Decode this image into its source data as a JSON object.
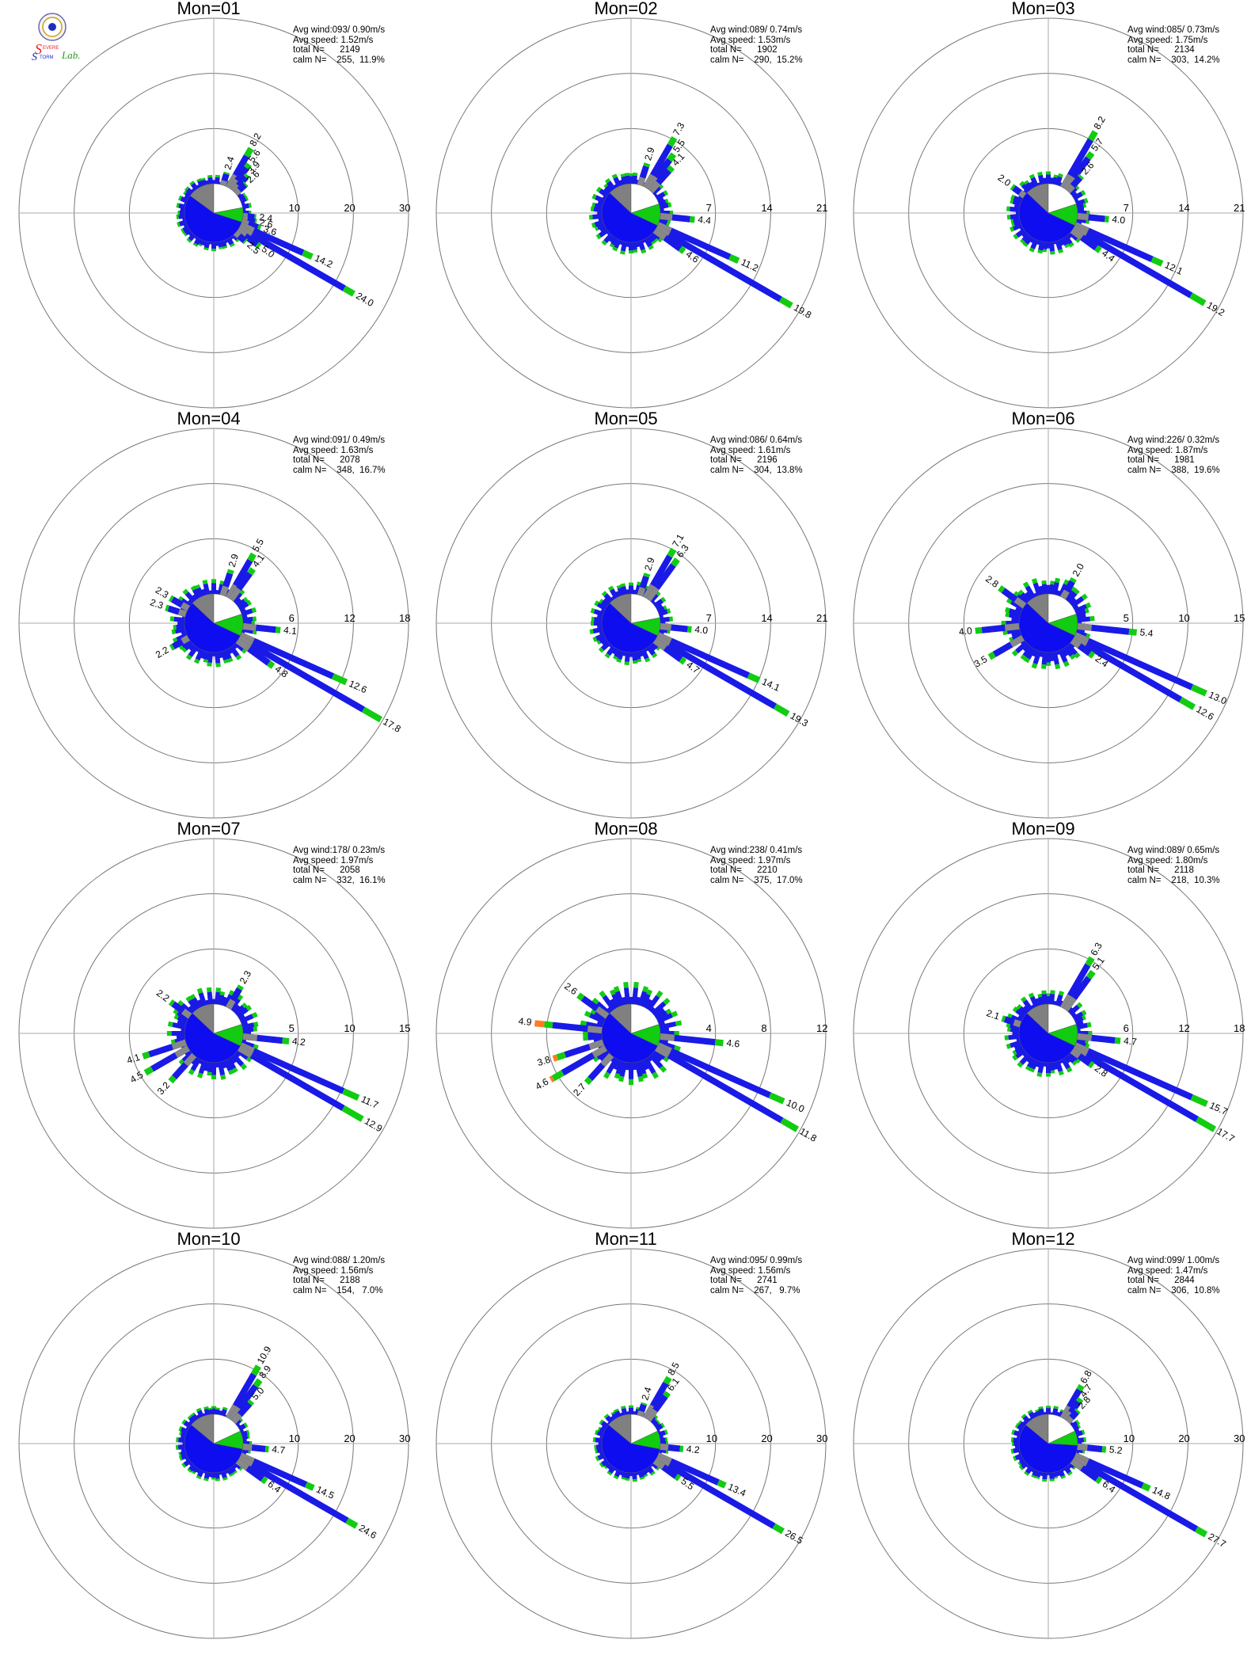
{
  "logo": {
    "lab_text_s1": "S",
    "lab_text_evere": "EVERE",
    "lab_text_s2": "S",
    "lab_text_torm": "TORM",
    "lab_text_lab": "Lab.",
    "colors": {
      "red": "#e8202a",
      "blue": "#1c2fbf",
      "green": "#2a9a1a"
    }
  },
  "colors": {
    "ring": "#777777",
    "axis": "#aaaaaa",
    "speed_0": "#1a1ae6",
    "speed_1": "#11cc11",
    "speed_2": "#ff7b24",
    "calm_blue": "#0d0df0",
    "calm_green": "#11cc11",
    "calm_gray": "#808080",
    "calm_white": "#ffffff"
  },
  "chart_data": [
    {
      "type": "wind-rose",
      "title": "Mon=01",
      "stats": [
        "Avg wind:093/ 0.90m/s",
        "Avg speed: 1.52m/s",
        "total N=      2149",
        "calm N=    255,  11.9%"
      ],
      "rings": [
        10,
        20,
        30
      ],
      "ring_labels": [
        "10",
        "20",
        "30"
      ],
      "bars": [
        {
          "dir": 30,
          "values": [
            6.6,
            1.6
          ],
          "label": "8.2"
        },
        {
          "dir": 36,
          "values": [
            4.8,
            0.8
          ],
          "label": "5.6"
        },
        {
          "dir": 42,
          "values": [
            3.4,
            0.5
          ],
          "label": "3.9"
        },
        {
          "dir": 48,
          "values": [
            2.3,
            0.3
          ],
          "label": "2.6"
        },
        {
          "dir": 96,
          "values": [
            2.1,
            0.3
          ],
          "label": "2.4"
        },
        {
          "dir": 102,
          "values": [
            2.3,
            0.3
          ],
          "label": "2.6"
        },
        {
          "dir": 108,
          "values": [
            3.1,
            0.5
          ],
          "label": "3.6"
        },
        {
          "dir": 114,
          "values": [
            12.4,
            1.8
          ],
          "label": "14.2"
        },
        {
          "dir": 120,
          "values": [
            22.0,
            2.0
          ],
          "label": "24.0"
        },
        {
          "dir": 126,
          "values": [
            4.4,
            0.6
          ],
          "label": "5.0"
        },
        {
          "dir": 132,
          "values": [
            2.2,
            0.3
          ],
          "label": "2.5"
        },
        {
          "dir": 18,
          "values": [
            2.1,
            0.3
          ],
          "label": "2.4"
        }
      ],
      "calm_fractions": {
        "blue": 0.55,
        "gray": 0.15,
        "white": 0.22,
        "green": 0.08
      }
    },
    {
      "type": "wind-rose",
      "title": "Mon=02",
      "stats": [
        "Avg wind:089/ 0.74m/s",
        "Avg speed: 1.53m/s",
        "total N=      1902",
        "calm N=    290,  15.2%"
      ],
      "rings": [
        7,
        14,
        21
      ],
      "ring_labels": [
        "7",
        "14",
        "21"
      ],
      "bars": [
        {
          "dir": 30,
          "values": [
            6.2,
            1.1
          ],
          "label": "7.3"
        },
        {
          "dir": 36,
          "values": [
            4.6,
            0.9
          ],
          "label": "5.5"
        },
        {
          "dir": 42,
          "values": [
            3.5,
            0.6
          ],
          "label": "4.1"
        },
        {
          "dir": 18,
          "values": [
            2.5,
            0.4
          ],
          "label": "2.9"
        },
        {
          "dir": 96,
          "values": [
            3.8,
            0.6
          ],
          "label": "4.4"
        },
        {
          "dir": 114,
          "values": [
            10.0,
            1.2
          ],
          "label": "11.2"
        },
        {
          "dir": 120,
          "values": [
            18.2,
            1.6
          ],
          "label": "19.8"
        },
        {
          "dir": 126,
          "values": [
            4.0,
            0.6
          ],
          "label": "4.6"
        }
      ],
      "calm_fractions": {
        "blue": 0.55,
        "gray": 0.13,
        "white": 0.2,
        "green": 0.12
      }
    },
    {
      "type": "wind-rose",
      "title": "Mon=03",
      "stats": [
        "Avg wind:085/ 0.73m/s",
        "Avg speed: 1.75m/s",
        "total N=      2134",
        "calm N=    303,  14.2%"
      ],
      "rings": [
        7,
        14,
        21
      ],
      "ring_labels": [
        "7",
        "14",
        "21"
      ],
      "bars": [
        {
          "dir": 30,
          "values": [
            7.0,
            1.2
          ],
          "label": "8.2"
        },
        {
          "dir": 36,
          "values": [
            4.9,
            0.8
          ],
          "label": "5.7"
        },
        {
          "dir": 42,
          "values": [
            2.3,
            0.3
          ],
          "label": "2.6"
        },
        {
          "dir": 306,
          "values": [
            1.7,
            0.3
          ],
          "label": "2.0"
        },
        {
          "dir": 96,
          "values": [
            3.5,
            0.5
          ],
          "label": "4.0"
        },
        {
          "dir": 114,
          "values": [
            10.7,
            1.4
          ],
          "label": "12.1"
        },
        {
          "dir": 120,
          "values": [
            17.2,
            2.0
          ],
          "label": "19.2"
        },
        {
          "dir": 126,
          "values": [
            3.8,
            0.6
          ],
          "label": "4.4"
        }
      ],
      "calm_fractions": {
        "blue": 0.55,
        "gray": 0.13,
        "white": 0.2,
        "green": 0.12
      }
    },
    {
      "type": "wind-rose",
      "title": "Mon=04",
      "stats": [
        "Avg wind:091/ 0.49m/s",
        "Avg speed: 1.63m/s",
        "total N=      2078",
        "calm N=    348,  16.7%"
      ],
      "rings": [
        6,
        12,
        18
      ],
      "ring_labels": [
        "6",
        "12",
        "18"
      ],
      "bars": [
        {
          "dir": 30,
          "values": [
            4.7,
            0.8
          ],
          "label": "5.5"
        },
        {
          "dir": 36,
          "values": [
            3.5,
            0.6
          ],
          "label": "4.1"
        },
        {
          "dir": 18,
          "values": [
            2.5,
            0.4
          ],
          "label": "2.9"
        },
        {
          "dir": 300,
          "values": [
            2.0,
            0.3
          ],
          "label": "2.3"
        },
        {
          "dir": 288,
          "values": [
            2.0,
            0.3
          ],
          "label": "2.3"
        },
        {
          "dir": 96,
          "values": [
            3.6,
            0.5
          ],
          "label": "4.1"
        },
        {
          "dir": 114,
          "values": [
            11.0,
            1.6
          ],
          "label": "12.6"
        },
        {
          "dir": 120,
          "values": [
            15.6,
            2.2
          ],
          "label": "17.8"
        },
        {
          "dir": 126,
          "values": [
            4.2,
            0.6
          ],
          "label": "4.8"
        },
        {
          "dir": 240,
          "values": [
            1.9,
            0.3
          ],
          "label": "2.2"
        }
      ],
      "calm_fractions": {
        "blue": 0.55,
        "gray": 0.13,
        "white": 0.2,
        "green": 0.12
      }
    },
    {
      "type": "wind-rose",
      "title": "Mon=05",
      "stats": [
        "Avg wind:086/ 0.64m/s",
        "Avg speed: 1.61m/s",
        "total N=      2196",
        "calm N=    304,  13.8%"
      ],
      "rings": [
        7,
        14,
        21
      ],
      "ring_labels": [
        "7",
        "14",
        "21"
      ],
      "bars": [
        {
          "dir": 30,
          "values": [
            6.1,
            1.0
          ],
          "label": "7.1"
        },
        {
          "dir": 36,
          "values": [
            5.4,
            0.9
          ],
          "label": "6.3"
        },
        {
          "dir": 18,
          "values": [
            2.5,
            0.4
          ],
          "label": "2.9"
        },
        {
          "dir": 96,
          "values": [
            3.5,
            0.5
          ],
          "label": "4.0"
        },
        {
          "dir": 114,
          "values": [
            12.6,
            1.5
          ],
          "label": "14.1"
        },
        {
          "dir": 120,
          "values": [
            17.4,
            1.9
          ],
          "label": "19.3"
        },
        {
          "dir": 126,
          "values": [
            4.1,
            0.6
          ],
          "label": "4.7"
        }
      ],
      "calm_fractions": {
        "blue": 0.55,
        "gray": 0.13,
        "white": 0.22,
        "green": 0.1
      }
    },
    {
      "type": "wind-rose",
      "title": "Mon=06",
      "stats": [
        "Avg wind:226/ 0.32m/s",
        "Avg speed: 1.87m/s",
        "total N=      1981",
        "calm N=    388,  19.6%"
      ],
      "rings": [
        5,
        10,
        15
      ],
      "ring_labels": [
        "5",
        "10",
        "15"
      ],
      "bars": [
        {
          "dir": 30,
          "values": [
            1.7,
            0.3
          ],
          "label": "2.0"
        },
        {
          "dir": 96,
          "values": [
            4.7,
            0.7
          ],
          "label": "5.4"
        },
        {
          "dir": 114,
          "values": [
            11.6,
            1.4
          ],
          "label": "13.0"
        },
        {
          "dir": 120,
          "values": [
            11.2,
            1.4
          ],
          "label": "12.6"
        },
        {
          "dir": 126,
          "values": [
            2.0,
            0.4
          ],
          "label": "2.4"
        },
        {
          "dir": 306,
          "values": [
            2.4,
            0.4
          ],
          "label": "2.8"
        },
        {
          "dir": 264,
          "values": [
            3.4,
            0.6
          ],
          "label": "4.0"
        },
        {
          "dir": 240,
          "values": [
            3.0,
            0.5
          ],
          "label": "3.5"
        }
      ],
      "calm_fractions": {
        "blue": 0.55,
        "gray": 0.13,
        "white": 0.2,
        "green": 0.12
      }
    },
    {
      "type": "wind-rose",
      "title": "Mon=07",
      "stats": [
        "Avg wind:178/ 0.23m/s",
        "Avg speed: 1.97m/s",
        "total N=      2058",
        "calm N=    332,  16.1%"
      ],
      "rings": [
        5,
        10,
        15
      ],
      "ring_labels": [
        "5",
        "10",
        "15"
      ],
      "bars": [
        {
          "dir": 30,
          "values": [
            2.0,
            0.3
          ],
          "label": "2.3"
        },
        {
          "dir": 96,
          "values": [
            3.6,
            0.6
          ],
          "label": "4.2"
        },
        {
          "dir": 114,
          "values": [
            10.2,
            1.5
          ],
          "label": "11.7"
        },
        {
          "dir": 120,
          "values": [
            10.9,
            2.0
          ],
          "label": "12.9"
        },
        {
          "dir": 306,
          "values": [
            1.9,
            0.3
          ],
          "label": "2.2"
        },
        {
          "dir": 240,
          "values": [
            3.8,
            0.7
          ],
          "label": "4.5"
        },
        {
          "dir": 252,
          "values": [
            3.5,
            0.6
          ],
          "label": "4.1"
        },
        {
          "dir": 222,
          "values": [
            2.7,
            0.5
          ],
          "label": "3.2"
        }
      ],
      "calm_fractions": {
        "blue": 0.55,
        "gray": 0.13,
        "white": 0.2,
        "green": 0.12
      }
    },
    {
      "type": "wind-rose",
      "title": "Mon=08",
      "stats": [
        "Avg wind:238/ 0.41m/s",
        "Avg speed: 1.97m/s",
        "total N=      2210",
        "calm N=    375,  17.0%"
      ],
      "rings": [
        4,
        8,
        12
      ],
      "ring_labels": [
        "4",
        "8",
        "12"
      ],
      "bars": [
        {
          "dir": 96,
          "values": [
            4.0,
            0.6
          ],
          "label": "4.6"
        },
        {
          "dir": 114,
          "values": [
            8.9,
            1.1
          ],
          "label": "10.0"
        },
        {
          "dir": 120,
          "values": [
            10.5,
            1.3
          ],
          "label": "11.8"
        },
        {
          "dir": 276,
          "values": [
            3.6,
            0.6,
            0.7
          ],
          "label": "4.9"
        },
        {
          "dir": 306,
          "values": [
            2.2,
            0.4
          ],
          "label": "2.6"
        },
        {
          "dir": 240,
          "values": [
            3.6,
            0.8,
            0.2
          ],
          "label": "4.6"
        },
        {
          "dir": 252,
          "values": [
            2.9,
            0.6,
            0.3
          ],
          "label": "3.8"
        },
        {
          "dir": 222,
          "values": [
            2.3,
            0.4
          ],
          "label": "2.7"
        }
      ],
      "calm_fractions": {
        "blue": 0.55,
        "gray": 0.13,
        "white": 0.2,
        "green": 0.12
      }
    },
    {
      "type": "wind-rose",
      "title": "Mon=09",
      "stats": [
        "Avg wind:089/ 0.65m/s",
        "Avg speed: 1.80m/s",
        "total N=      2118",
        "calm N=    218,  10.3%"
      ],
      "rings": [
        6,
        12,
        18
      ],
      "ring_labels": [
        "6",
        "12",
        "18"
      ],
      "bars": [
        {
          "dir": 30,
          "values": [
            5.4,
            0.9
          ],
          "label": "6.3"
        },
        {
          "dir": 36,
          "values": [
            4.3,
            0.8
          ],
          "label": "5.1"
        },
        {
          "dir": 96,
          "values": [
            4.1,
            0.6
          ],
          "label": "4.7"
        },
        {
          "dir": 114,
          "values": [
            13.9,
            1.8
          ],
          "label": "15.7"
        },
        {
          "dir": 120,
          "values": [
            15.5,
            2.2
          ],
          "label": "17.7"
        },
        {
          "dir": 126,
          "values": [
            2.4,
            0.4
          ],
          "label": "2.8"
        },
        {
          "dir": 288,
          "values": [
            1.8,
            0.3
          ],
          "label": "2.1"
        }
      ],
      "calm_fractions": {
        "blue": 0.55,
        "gray": 0.13,
        "white": 0.2,
        "green": 0.12
      }
    },
    {
      "type": "wind-rose",
      "title": "Mon=10",
      "stats": [
        "Avg wind:088/ 1.20m/s",
        "Avg speed: 1.56m/s",
        "total N=      2188",
        "calm N=    154,   7.0%"
      ],
      "rings": [
        10,
        20,
        30
      ],
      "ring_labels": [
        "10",
        "20",
        "30"
      ],
      "bars": [
        {
          "dir": 30,
          "values": [
            9.2,
            1.7
          ],
          "label": "10.9"
        },
        {
          "dir": 36,
          "values": [
            7.6,
            1.3
          ],
          "label": "8.9"
        },
        {
          "dir": 42,
          "values": [
            4.4,
            0.6
          ],
          "label": "5.0"
        },
        {
          "dir": 96,
          "values": [
            4.1,
            0.6
          ],
          "label": "4.7"
        },
        {
          "dir": 114,
          "values": [
            13.0,
            1.5
          ],
          "label": "14.5"
        },
        {
          "dir": 120,
          "values": [
            22.6,
            2.0
          ],
          "label": "24.6"
        },
        {
          "dir": 126,
          "values": [
            5.6,
            0.8
          ],
          "label": "6.4"
        }
      ],
      "calm_fractions": {
        "blue": 0.58,
        "gray": 0.14,
        "white": 0.18,
        "green": 0.1
      }
    },
    {
      "type": "wind-rose",
      "title": "Mon=11",
      "stats": [
        "Avg wind:095/ 0.99m/s",
        "Avg speed: 1.56m/s",
        "total N=      2741",
        "calm N=    267,   9.7%"
      ],
      "rings": [
        10,
        20,
        30
      ],
      "ring_labels": [
        "10",
        "20",
        "30"
      ],
      "bars": [
        {
          "dir": 30,
          "values": [
            7.3,
            1.2
          ],
          "label": "8.5"
        },
        {
          "dir": 36,
          "values": [
            5.3,
            0.8
          ],
          "label": "6.1"
        },
        {
          "dir": 18,
          "values": [
            2.1,
            0.3
          ],
          "label": "2.4"
        },
        {
          "dir": 96,
          "values": [
            3.6,
            0.6
          ],
          "label": "4.2"
        },
        {
          "dir": 114,
          "values": [
            12.0,
            1.4
          ],
          "label": "13.4"
        },
        {
          "dir": 120,
          "values": [
            24.6,
            1.9
          ],
          "label": "26.5"
        },
        {
          "dir": 126,
          "values": [
            4.8,
            0.7
          ],
          "label": "5.5"
        }
      ],
      "calm_fractions": {
        "blue": 0.58,
        "gray": 0.14,
        "white": 0.18,
        "green": 0.1
      }
    },
    {
      "type": "wind-rose",
      "title": "Mon=12",
      "stats": [
        "Avg wind:099/ 1.00m/s",
        "Avg speed: 1.47m/s",
        "total N=      2844",
        "calm N=    306,  10.8%"
      ],
      "rings": [
        10,
        20,
        30
      ],
      "ring_labels": [
        "10",
        "20",
        "30"
      ],
      "bars": [
        {
          "dir": 30,
          "values": [
            5.9,
            0.9
          ],
          "label": "6.8"
        },
        {
          "dir": 36,
          "values": [
            4.0,
            0.7
          ],
          "label": "4.7"
        },
        {
          "dir": 42,
          "values": [
            2.4,
            0.4
          ],
          "label": "2.8"
        },
        {
          "dir": 96,
          "values": [
            4.5,
            0.7
          ],
          "label": "5.2"
        },
        {
          "dir": 114,
          "values": [
            13.4,
            1.4
          ],
          "label": "14.8"
        },
        {
          "dir": 120,
          "values": [
            25.7,
            2.0
          ],
          "label": "27.7"
        },
        {
          "dir": 126,
          "values": [
            5.6,
            0.8
          ],
          "label": "6.4"
        }
      ],
      "calm_fractions": {
        "blue": 0.6,
        "gray": 0.14,
        "white": 0.18,
        "green": 0.08
      }
    }
  ]
}
